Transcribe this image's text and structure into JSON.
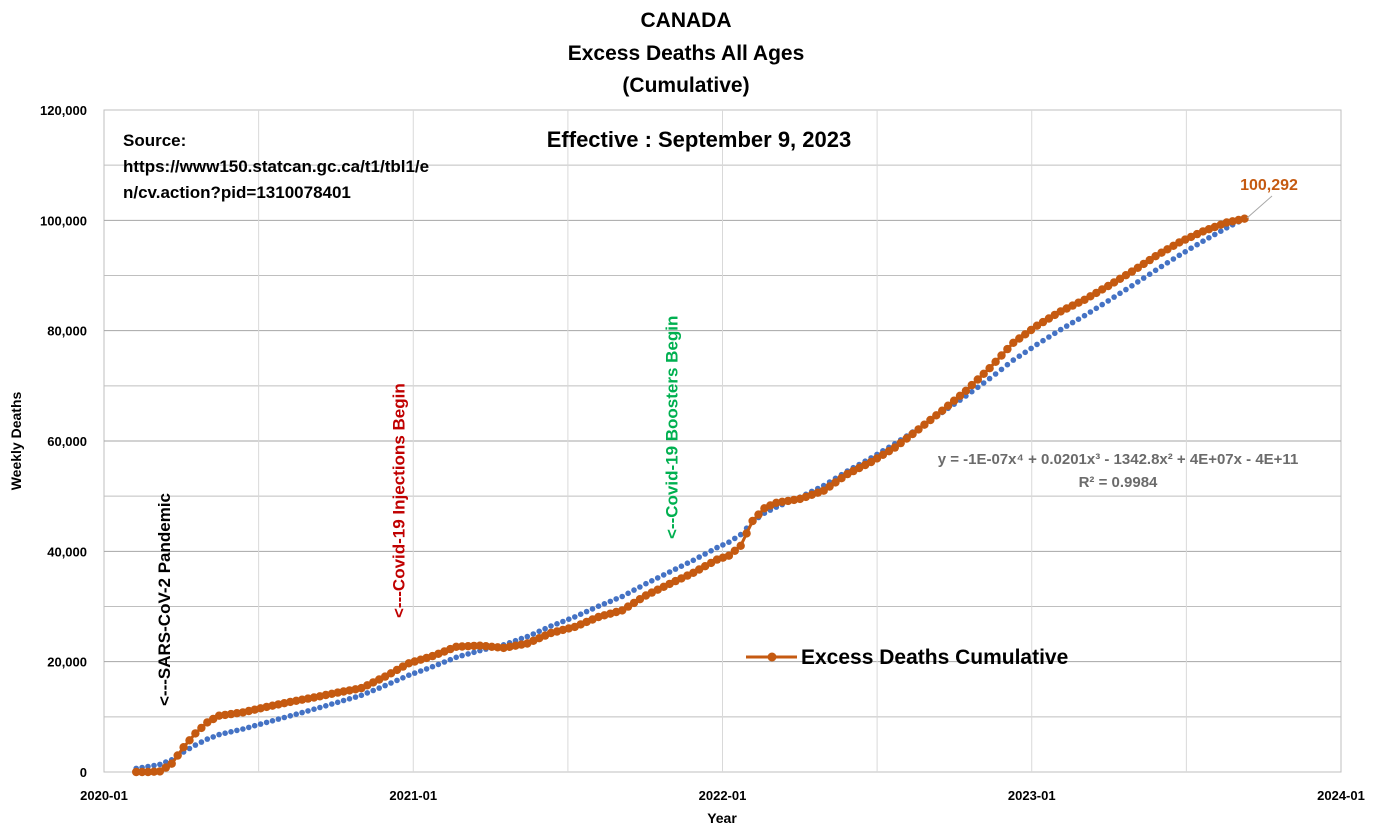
{
  "chart_data": {
    "type": "line",
    "title": [
      "CANADA",
      "Excess Deaths All Ages",
      "(Cumulative)"
    ],
    "xlabel": "Year",
    "ylabel": "Weekly Deaths",
    "x_ticks": [
      "2020-01",
      "2021-01",
      "2022-01",
      "2023-01",
      "2024-01"
    ],
    "y_ticks": [
      "0",
      "20,000",
      "40,000",
      "60,000",
      "80,000",
      "100,000",
      "120,000"
    ],
    "xlim": [
      "2020-01-01",
      "2024-01-01"
    ],
    "ylim": [
      0,
      120000
    ],
    "grid": true,
    "source_lines": [
      "Source:",
      "https://www150.statcan.gc.ca/t1/tbl1/e",
      "n/cv.action?pid=1310078401"
    ],
    "effective": "Effective : September 9, 2023",
    "annotations": [
      {
        "text": "<---SARS-CoV-2 Pandemic",
        "date": "2020-03-12",
        "color": "#000000"
      },
      {
        "text": "<---Covid-19 Injections Begin",
        "date": "2020-12-14",
        "color": "#c00000"
      },
      {
        "text": "<--Covid-19 Boosters Begin",
        "date": "2021-11-01",
        "color": "#00b050"
      }
    ],
    "trendline": {
      "equation": "y = -1E-07x⁴ + 0.0201x³ - 1342.8x² + 4E+07x - 4E+11",
      "r2": "R² = 0.9984",
      "color": "#4472c4"
    },
    "last_value_label": "100,292",
    "legend": "top-right",
    "series": [
      {
        "name": "Excess Deaths Cumulative",
        "color": "#c55a11",
        "points": [
          [
            "2020-02-08",
            0
          ],
          [
            "2020-02-22",
            0
          ],
          [
            "2020-03-07",
            100
          ],
          [
            "2020-03-21",
            1500
          ],
          [
            "2020-04-04",
            4500
          ],
          [
            "2020-04-18",
            7000
          ],
          [
            "2020-05-02",
            9000
          ],
          [
            "2020-05-16",
            10200
          ],
          [
            "2020-06-13",
            10800
          ],
          [
            "2020-07-11",
            11800
          ],
          [
            "2020-08-08",
            12700
          ],
          [
            "2020-09-05",
            13500
          ],
          [
            "2020-10-03",
            14400
          ],
          [
            "2020-10-31",
            15200
          ],
          [
            "2020-11-28",
            17300
          ],
          [
            "2020-12-26",
            19700
          ],
          [
            "2021-01-23",
            21000
          ],
          [
            "2021-02-20",
            22700
          ],
          [
            "2021-03-20",
            22900
          ],
          [
            "2021-04-17",
            22500
          ],
          [
            "2021-05-15",
            23300
          ],
          [
            "2021-06-12",
            25200
          ],
          [
            "2021-07-10",
            26300
          ],
          [
            "2021-08-07",
            28100
          ],
          [
            "2021-09-04",
            29300
          ],
          [
            "2021-10-02",
            32000
          ],
          [
            "2021-10-30",
            34100
          ],
          [
            "2021-11-27",
            36100
          ],
          [
            "2021-12-25",
            38500
          ],
          [
            "2022-01-08",
            39200
          ],
          [
            "2022-01-22",
            41000
          ],
          [
            "2022-02-05",
            45500
          ],
          [
            "2022-02-19",
            47800
          ],
          [
            "2022-03-05",
            48800
          ],
          [
            "2022-04-02",
            49500
          ],
          [
            "2022-04-30",
            51000
          ],
          [
            "2022-05-28",
            54000
          ],
          [
            "2022-06-25",
            56200
          ],
          [
            "2022-07-23",
            58800
          ],
          [
            "2022-08-20",
            62100
          ],
          [
            "2022-09-17",
            65500
          ],
          [
            "2022-10-15",
            69100
          ],
          [
            "2022-11-12",
            73200
          ],
          [
            "2022-12-10",
            77800
          ],
          [
            "2023-01-07",
            80900
          ],
          [
            "2023-02-04",
            83500
          ],
          [
            "2023-03-04",
            85600
          ],
          [
            "2023-04-01",
            88100
          ],
          [
            "2023-04-29",
            90700
          ],
          [
            "2023-05-27",
            93500
          ],
          [
            "2023-06-24",
            96000
          ],
          [
            "2023-07-22",
            98000
          ],
          [
            "2023-08-19",
            99600
          ],
          [
            "2023-09-09",
            100292
          ]
        ]
      }
    ]
  }
}
